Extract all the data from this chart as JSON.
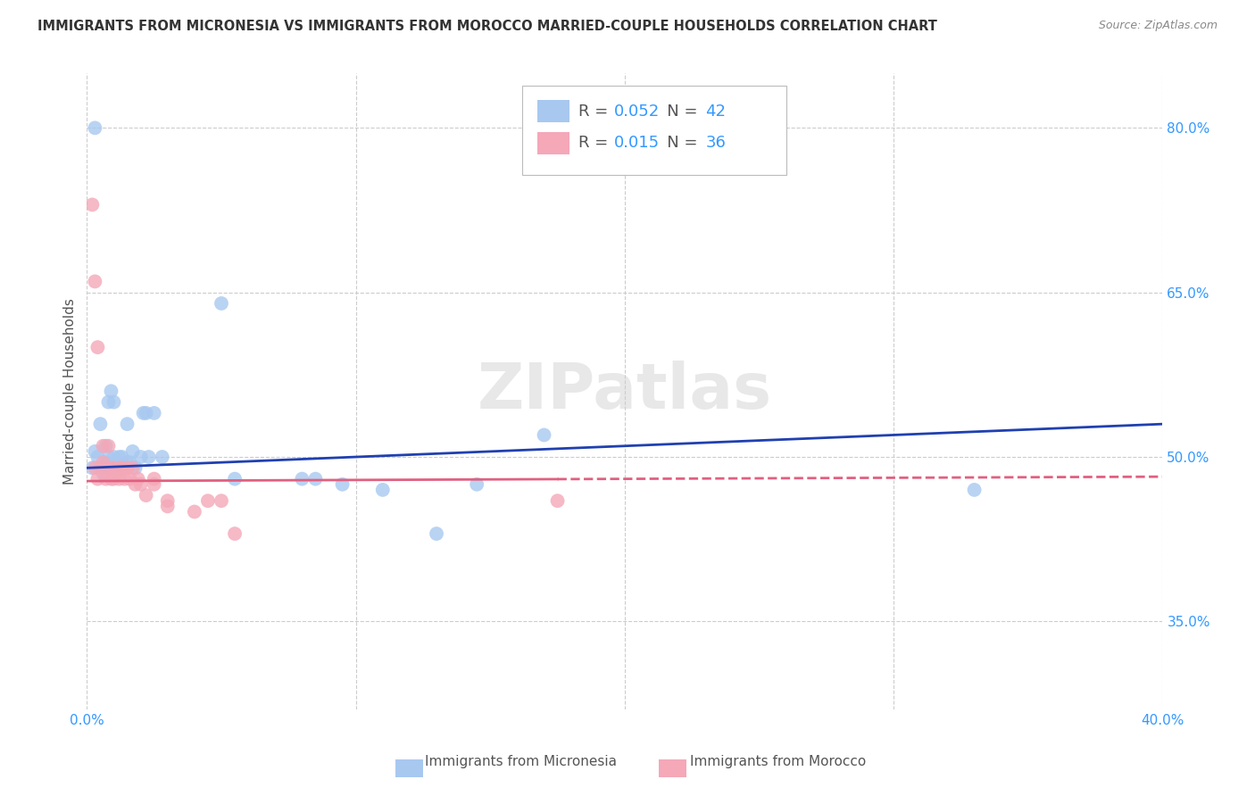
{
  "title": "IMMIGRANTS FROM MICRONESIA VS IMMIGRANTS FROM MOROCCO MARRIED-COUPLE HOUSEHOLDS CORRELATION CHART",
  "source": "Source: ZipAtlas.com",
  "ylabel": "Married-couple Households",
  "legend_label1": "Immigrants from Micronesia",
  "legend_label2": "Immigrants from Morocco",
  "r1": 0.052,
  "n1": 42,
  "r2": 0.015,
  "n2": 36,
  "xmin": 0.0,
  "xmax": 0.4,
  "ymin": 0.27,
  "ymax": 0.85,
  "yticks": [
    0.35,
    0.5,
    0.65,
    0.8
  ],
  "ytick_labels": [
    "35.0%",
    "50.0%",
    "65.0%",
    "80.0%"
  ],
  "xticks": [
    0.0,
    0.1,
    0.2,
    0.3,
    0.4
  ],
  "xtick_labels": [
    "0.0%",
    "",
    "",
    "",
    "40.0%"
  ],
  "color_blue": "#A8C8F0",
  "color_pink": "#F4A8B8",
  "line_blue": "#2040B0",
  "line_pink": "#E06080",
  "watermark": "ZIPatlas",
  "blue_scatter_x": [
    0.002,
    0.003,
    0.003,
    0.004,
    0.005,
    0.006,
    0.006,
    0.007,
    0.007,
    0.008,
    0.008,
    0.009,
    0.009,
    0.01,
    0.01,
    0.011,
    0.012,
    0.012,
    0.013,
    0.013,
    0.014,
    0.015,
    0.015,
    0.016,
    0.017,
    0.018,
    0.02,
    0.021,
    0.022,
    0.023,
    0.025,
    0.028,
    0.05,
    0.055,
    0.08,
    0.085,
    0.095,
    0.11,
    0.13,
    0.145,
    0.17,
    0.33
  ],
  "blue_scatter_y": [
    0.49,
    0.8,
    0.505,
    0.5,
    0.53,
    0.49,
    0.485,
    0.51,
    0.495,
    0.55,
    0.5,
    0.56,
    0.49,
    0.55,
    0.5,
    0.49,
    0.49,
    0.5,
    0.5,
    0.49,
    0.49,
    0.53,
    0.495,
    0.495,
    0.505,
    0.49,
    0.5,
    0.54,
    0.54,
    0.5,
    0.54,
    0.5,
    0.64,
    0.48,
    0.48,
    0.48,
    0.475,
    0.47,
    0.43,
    0.475,
    0.52,
    0.47
  ],
  "pink_scatter_x": [
    0.002,
    0.004,
    0.005,
    0.006,
    0.006,
    0.007,
    0.007,
    0.008,
    0.009,
    0.009,
    0.01,
    0.01,
    0.011,
    0.012,
    0.012,
    0.013,
    0.014,
    0.015,
    0.016,
    0.017,
    0.018,
    0.019,
    0.02,
    0.022,
    0.025,
    0.025,
    0.03,
    0.03,
    0.04,
    0.045,
    0.05,
    0.055,
    0.175,
    0.003,
    0.003,
    0.004
  ],
  "pink_scatter_y": [
    0.73,
    0.6,
    0.49,
    0.51,
    0.495,
    0.49,
    0.48,
    0.51,
    0.49,
    0.48,
    0.49,
    0.48,
    0.485,
    0.48,
    0.49,
    0.49,
    0.48,
    0.49,
    0.48,
    0.49,
    0.475,
    0.48,
    0.475,
    0.465,
    0.48,
    0.475,
    0.46,
    0.455,
    0.45,
    0.46,
    0.46,
    0.43,
    0.46,
    0.66,
    0.49,
    0.48
  ],
  "blue_line_x0": 0.0,
  "blue_line_y0": 0.49,
  "blue_line_x1": 0.4,
  "blue_line_y1": 0.53,
  "pink_line_x0": 0.0,
  "pink_line_y0": 0.478,
  "pink_line_x1": 0.4,
  "pink_line_y1": 0.482
}
